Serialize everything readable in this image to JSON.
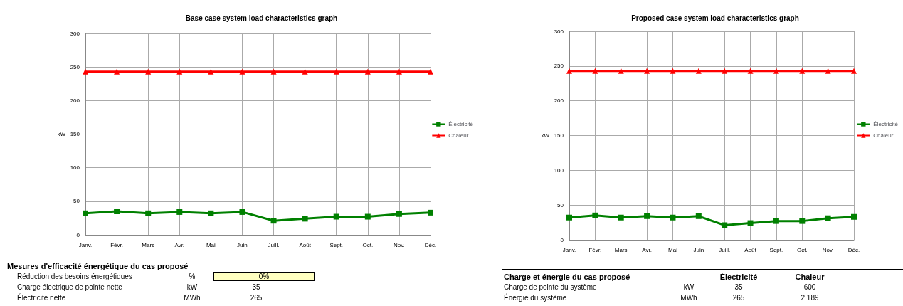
{
  "chart_data": [
    {
      "type": "line",
      "title": "Base case system load characteristics graph",
      "ylabel": "kW",
      "categories": [
        "Janv.",
        "Févr.",
        "Mars",
        "Avr.",
        "Mai",
        "Juin",
        "Juill.",
        "Août",
        "Sept.",
        "Oct.",
        "Nov.",
        "Déc."
      ],
      "ylim": [
        0,
        300
      ],
      "yticks": [
        0,
        50,
        100,
        150,
        200,
        250,
        300
      ],
      "grid": true,
      "legend": "right",
      "series": [
        {
          "name": "Électricité",
          "color": "#008000",
          "marker": "square",
          "values": [
            32,
            35,
            32,
            34,
            32,
            34,
            21,
            24,
            27,
            27,
            31,
            33
          ]
        },
        {
          "name": "Chaleur",
          "color": "#ff0000",
          "marker": "triangle",
          "values": [
            243,
            243,
            243,
            243,
            243,
            243,
            243,
            243,
            243,
            243,
            243,
            243
          ]
        }
      ]
    },
    {
      "type": "line",
      "title": "Proposed case system load characteristics graph",
      "ylabel": "kW",
      "categories": [
        "Janv.",
        "Févr.",
        "Mars",
        "Avr.",
        "Mai",
        "Juin",
        "Juill.",
        "Août",
        "Sept.",
        "Oct.",
        "Nov.",
        "Déc."
      ],
      "ylim": [
        0,
        300
      ],
      "yticks": [
        0,
        50,
        100,
        150,
        200,
        250,
        300
      ],
      "grid": true,
      "legend": "right",
      "series": [
        {
          "name": "Électricité",
          "color": "#008000",
          "marker": "square",
          "values": [
            32,
            35,
            32,
            34,
            32,
            34,
            21,
            24,
            27,
            27,
            31,
            33
          ]
        },
        {
          "name": "Chaleur",
          "color": "#ff0000",
          "marker": "triangle",
          "values": [
            243,
            243,
            243,
            243,
            243,
            243,
            243,
            243,
            243,
            243,
            243,
            243
          ]
        }
      ]
    },
    {
      "type": "other",
      "title": "Mesures d'efficacité énergétique du cas proposé",
      "annotations": [
        "Réduction des besoins énergétiques",
        "%",
        "0%",
        "Charge électrique de pointe nette",
        "kW",
        "35",
        "Électricité nette",
        "MWh",
        "265"
      ]
    },
    {
      "type": "other",
      "title": "Charge et énergie du cas proposé",
      "categories": [
        "Électricité",
        "Chaleur"
      ],
      "annotations": [
        "Charge de pointe du système",
        "kW",
        "35",
        "600",
        "Énergie du système",
        "MWh",
        "265",
        "2 189"
      ]
    }
  ]
}
